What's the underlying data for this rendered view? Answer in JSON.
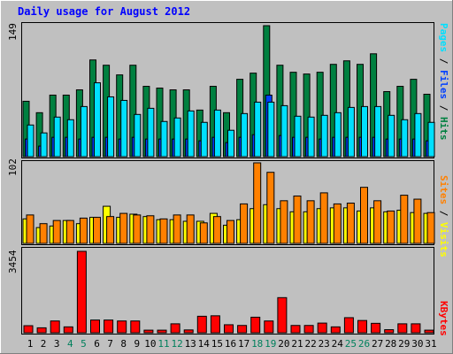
{
  "title": "Daily usage for August 2012",
  "colors": {
    "hits": "#008040",
    "files": "#0040ff",
    "pages": "#00e0ff",
    "visits": "#ffff00",
    "sites": "#ff8000",
    "kbytes": "#ff0000",
    "title_text": "#0000ff",
    "weekend_label": "#00805c",
    "weekday_label": "#000000"
  },
  "chart_data": [
    {
      "type": "bar",
      "panel": "top",
      "ymax_label": "149",
      "ylim": [
        0,
        149
      ],
      "legend": [
        {
          "text": "Pages",
          "color": "#00e0ff"
        },
        {
          "text": " / ",
          "color": "#000000"
        },
        {
          "text": "Files",
          "color": "#0040ff"
        },
        {
          "text": " / ",
          "color": "#000000"
        },
        {
          "text": "Hits",
          "color": "#008040"
        }
      ],
      "categories": [
        "1",
        "2",
        "3",
        "4",
        "5",
        "6",
        "7",
        "8",
        "9",
        "10",
        "11",
        "12",
        "13",
        "14",
        "15",
        "16",
        "17",
        "18",
        "19",
        "20",
        "21",
        "22",
        "23",
        "24",
        "25",
        "26",
        "27",
        "28",
        "29",
        "30",
        "31"
      ],
      "series": [
        {
          "name": "Hits",
          "values": [
            63,
            50,
            70,
            70,
            76,
            110,
            104,
            93,
            104,
            80,
            78,
            76,
            76,
            53,
            80,
            50,
            88,
            95,
            149,
            104,
            96,
            94,
            96,
            105,
            109,
            105,
            117,
            74,
            80,
            88,
            71
          ]
        },
        {
          "name": "Files",
          "values": [
            20,
            12,
            22,
            22,
            20,
            22,
            22,
            20,
            22,
            20,
            20,
            20,
            20,
            18,
            22,
            16,
            22,
            25,
            70,
            24,
            22,
            22,
            20,
            22,
            22,
            22,
            22,
            20,
            20,
            20,
            18
          ]
        },
        {
          "name": "Pages",
          "values": [
            36,
            27,
            45,
            42,
            57,
            84,
            68,
            64,
            48,
            55,
            40,
            44,
            52,
            39,
            53,
            30,
            49,
            62,
            62,
            58,
            46,
            45,
            47,
            50,
            56,
            57,
            57,
            47,
            42,
            49,
            39
          ]
        }
      ]
    },
    {
      "type": "bar",
      "panel": "middle",
      "ymax_label": "102",
      "ylim": [
        0,
        102
      ],
      "legend": [
        {
          "text": "Sites",
          "color": "#ff8000"
        },
        {
          "text": " / ",
          "color": "#000000"
        },
        {
          "text": "Visits",
          "color": "#ffff00"
        }
      ],
      "categories": [
        "1",
        "2",
        "3",
        "4",
        "5",
        "6",
        "7",
        "8",
        "9",
        "10",
        "11",
        "12",
        "13",
        "14",
        "15",
        "16",
        "17",
        "18",
        "19",
        "20",
        "21",
        "22",
        "23",
        "24",
        "25",
        "26",
        "27",
        "28",
        "29",
        "30",
        "31"
      ],
      "series": [
        {
          "name": "Visits",
          "values": [
            31,
            20,
            22,
            29,
            25,
            33,
            47,
            33,
            37,
            34,
            30,
            30,
            28,
            28,
            38,
            23,
            30,
            44,
            49,
            44,
            40,
            40,
            44,
            45,
            45,
            41,
            45,
            40,
            42,
            39,
            38
          ]
        },
        {
          "name": "Sites",
          "values": [
            36,
            25,
            29,
            29,
            32,
            33,
            34,
            38,
            36,
            35,
            31,
            36,
            36,
            26,
            34,
            29,
            50,
            102,
            90,
            54,
            60,
            54,
            64,
            50,
            51,
            71,
            54,
            41,
            61,
            56,
            39
          ]
        }
      ]
    },
    {
      "type": "bar",
      "panel": "bottom",
      "ymax_label": "3454",
      "ylim": [
        0,
        3454
      ],
      "legend": [
        {
          "text": "KBytes",
          "color": "#ff0000"
        }
      ],
      "categories": [
        "1",
        "2",
        "3",
        "4",
        "5",
        "6",
        "7",
        "8",
        "9",
        "10",
        "11",
        "12",
        "13",
        "14",
        "15",
        "16",
        "17",
        "18",
        "19",
        "20",
        "21",
        "22",
        "23",
        "24",
        "25",
        "26",
        "27",
        "28",
        "29",
        "30",
        "31"
      ],
      "series": [
        {
          "name": "KBytes",
          "values": [
            300,
            210,
            500,
            250,
            3454,
            540,
            540,
            500,
            500,
            110,
            110,
            380,
            120,
            700,
            720,
            340,
            310,
            660,
            500,
            1490,
            310,
            310,
            410,
            250,
            640,
            520,
            400,
            130,
            380,
            380,
            110
          ]
        }
      ]
    }
  ],
  "weekend_days": [
    "4",
    "5",
    "11",
    "12",
    "18",
    "19",
    "25",
    "26"
  ]
}
